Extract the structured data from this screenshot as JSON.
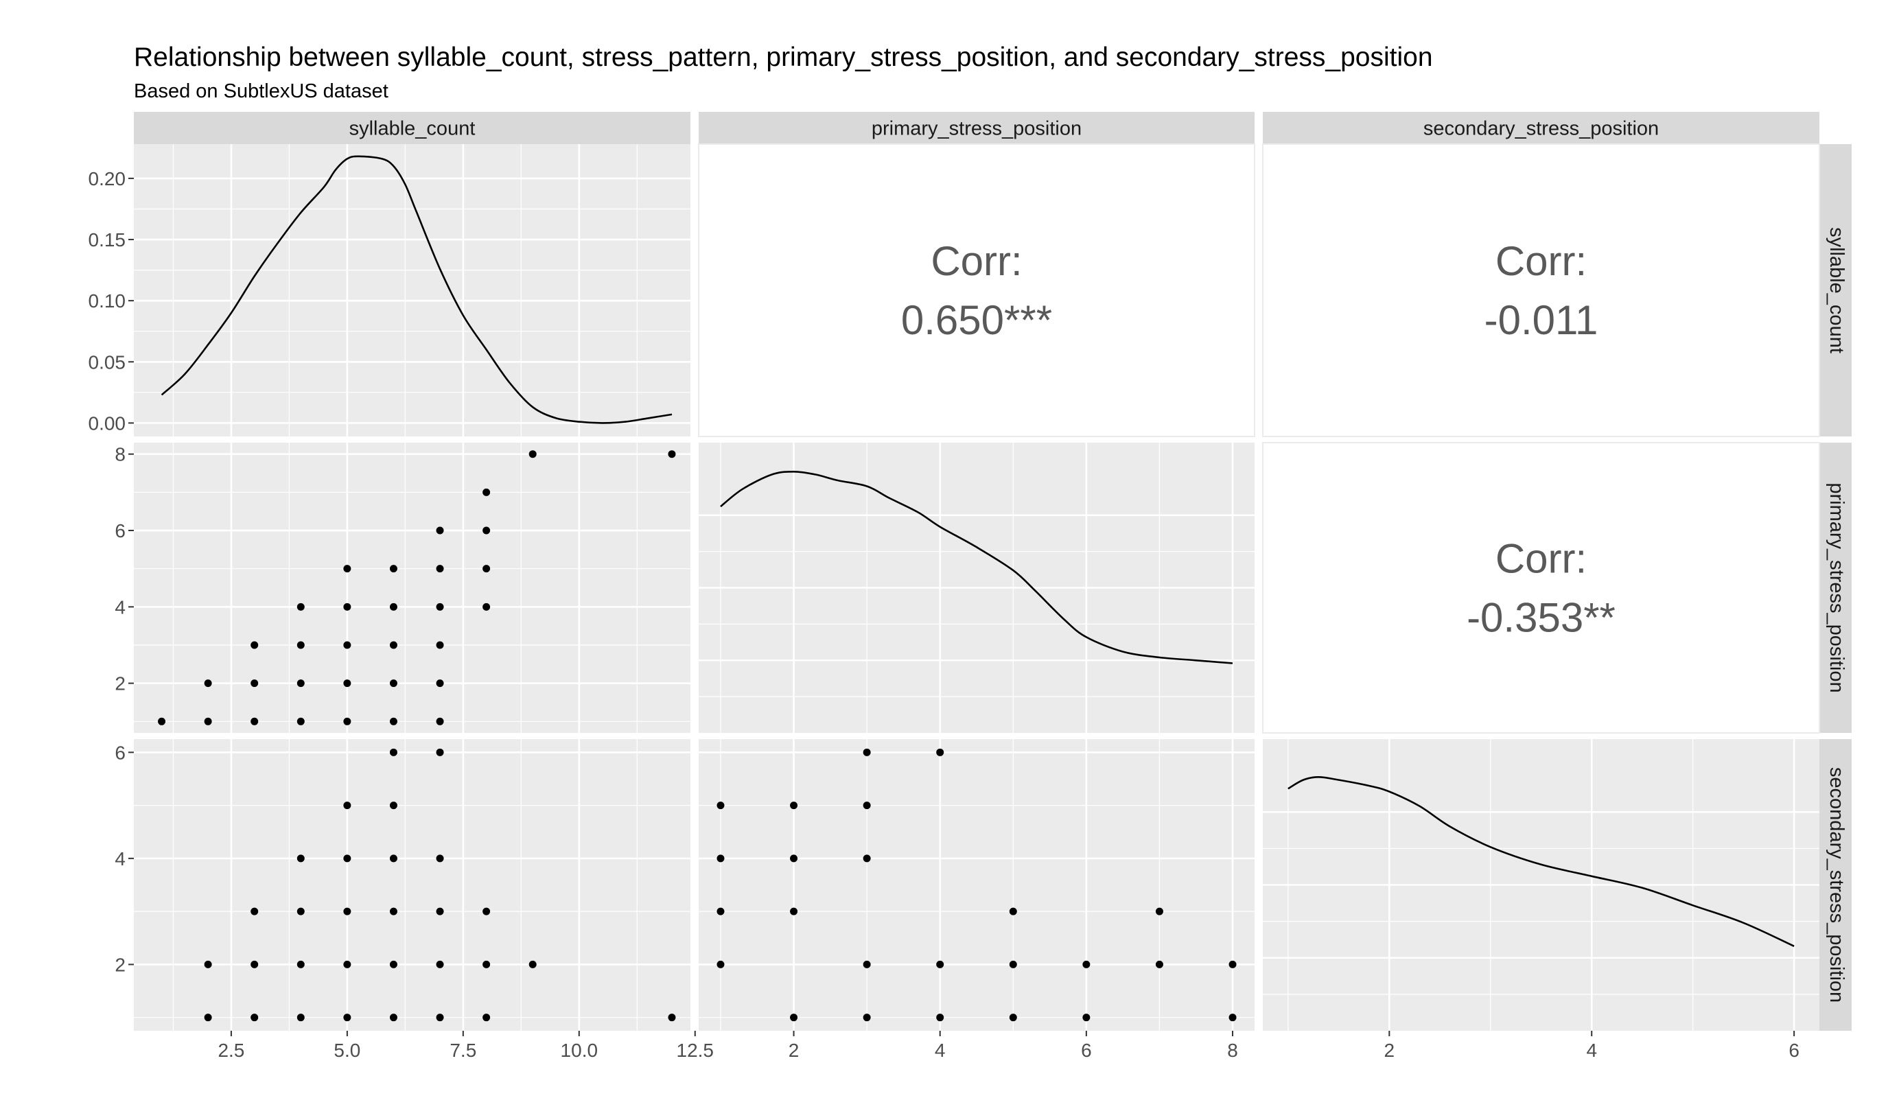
{
  "title": "Relationship between syllable_count, stress_pattern, primary_stress_position, and secondary_stress_position",
  "subtitle": "Based on SubtlexUS dataset",
  "variables": [
    "syllable_count",
    "primary_stress_position",
    "secondary_stress_position"
  ],
  "chart_data": {
    "type": "scatter",
    "title": "Relationship between syllable_count, stress_pattern, primary_stress_position, and secondary_stress_position",
    "subtitle": "Based on SubtlexUS dataset",
    "layout": "pairs-matrix 3x3 (density on diagonal, scatter lower, correlation upper)",
    "strips_top": [
      "syllable_count",
      "primary_stress_position",
      "secondary_stress_position"
    ],
    "strips_right": [
      "syllable_count",
      "primary_stress_position",
      "secondary_stress_position"
    ],
    "axes": {
      "syllable_count": {
        "range": [
          0.4,
          12.4
        ],
        "ticks": [
          2.5,
          5.0,
          7.5,
          10.0,
          12.5
        ],
        "tick_labels": [
          "2.5",
          "5.0",
          "7.5",
          "10.0",
          "12.5"
        ]
      },
      "primary_stress_position": {
        "range": [
          0.7,
          8.3
        ],
        "ticks": [
          2,
          4,
          6,
          8
        ],
        "tick_labels": [
          "2",
          "4",
          "6",
          "8"
        ]
      },
      "secondary_stress_position": {
        "range": [
          0.75,
          6.25
        ],
        "ticks": [
          2,
          4,
          6
        ],
        "tick_labels": [
          "2",
          "4",
          "6"
        ]
      },
      "density_syllable_count": {
        "range": [
          -0.011,
          0.228
        ],
        "ticks": [
          0.0,
          0.05,
          0.1,
          0.15,
          0.2
        ],
        "tick_labels": [
          "0.00",
          "0.05",
          "0.10",
          "0.15",
          "0.20"
        ]
      }
    },
    "densities": {
      "syllable_count": [
        [
          1.0,
          0.023
        ],
        [
          1.5,
          0.04
        ],
        [
          2.0,
          0.064
        ],
        [
          2.5,
          0.09
        ],
        [
          3.0,
          0.12
        ],
        [
          3.5,
          0.147
        ],
        [
          4.0,
          0.172
        ],
        [
          4.5,
          0.193
        ],
        [
          4.75,
          0.207
        ],
        [
          5.0,
          0.216
        ],
        [
          5.25,
          0.218
        ],
        [
          5.75,
          0.216
        ],
        [
          6.0,
          0.21
        ],
        [
          6.25,
          0.195
        ],
        [
          6.5,
          0.172
        ],
        [
          7.0,
          0.126
        ],
        [
          7.5,
          0.088
        ],
        [
          8.0,
          0.06
        ],
        [
          8.5,
          0.033
        ],
        [
          9.0,
          0.013
        ],
        [
          9.5,
          0.004
        ],
        [
          10.0,
          0.001
        ],
        [
          10.5,
          0.0
        ],
        [
          11.0,
          0.001
        ],
        [
          11.5,
          0.004
        ],
        [
          12.0,
          0.007
        ]
      ],
      "primary_stress_position": [
        [
          1.0,
          0.78
        ],
        [
          1.3,
          0.84
        ],
        [
          1.7,
          0.89
        ],
        [
          2.0,
          0.9
        ],
        [
          2.3,
          0.89
        ],
        [
          2.6,
          0.87
        ],
        [
          3.0,
          0.85
        ],
        [
          3.3,
          0.81
        ],
        [
          3.7,
          0.76
        ],
        [
          4.0,
          0.71
        ],
        [
          4.5,
          0.64
        ],
        [
          5.0,
          0.56
        ],
        [
          5.3,
          0.49
        ],
        [
          5.7,
          0.39
        ],
        [
          6.0,
          0.33
        ],
        [
          6.5,
          0.28
        ],
        [
          7.0,
          0.26
        ],
        [
          7.5,
          0.25
        ],
        [
          8.0,
          0.24
        ]
      ],
      "secondary_stress_position": [
        [
          1.0,
          0.83
        ],
        [
          1.15,
          0.86
        ],
        [
          1.3,
          0.87
        ],
        [
          1.5,
          0.86
        ],
        [
          1.8,
          0.84
        ],
        [
          2.0,
          0.82
        ],
        [
          2.3,
          0.77
        ],
        [
          2.6,
          0.7
        ],
        [
          3.0,
          0.63
        ],
        [
          3.5,
          0.57
        ],
        [
          4.0,
          0.53
        ],
        [
          4.5,
          0.49
        ],
        [
          5.0,
          0.43
        ],
        [
          5.5,
          0.37
        ],
        [
          6.0,
          0.29
        ]
      ]
    },
    "correlations": [
      {
        "row": "syllable_count",
        "col": "primary_stress_position",
        "label": "Corr:",
        "value": "0.650***"
      },
      {
        "row": "syllable_count",
        "col": "secondary_stress_position",
        "label": "Corr:",
        "value": "-0.011"
      },
      {
        "row": "primary_stress_position",
        "col": "secondary_stress_position",
        "label": "Corr:",
        "value": "-0.353**"
      }
    ],
    "scatter": {
      "syllable_count_vs_primary_stress_position": [
        [
          1,
          1
        ],
        [
          2,
          1
        ],
        [
          2,
          2
        ],
        [
          3,
          1
        ],
        [
          3,
          2
        ],
        [
          3,
          3
        ],
        [
          4,
          1
        ],
        [
          4,
          2
        ],
        [
          4,
          3
        ],
        [
          4,
          4
        ],
        [
          5,
          1
        ],
        [
          5,
          2
        ],
        [
          5,
          3
        ],
        [
          5,
          4
        ],
        [
          5,
          5
        ],
        [
          6,
          1
        ],
        [
          6,
          2
        ],
        [
          6,
          3
        ],
        [
          6,
          4
        ],
        [
          6,
          5
        ],
        [
          7,
          1
        ],
        [
          7,
          2
        ],
        [
          7,
          3
        ],
        [
          7,
          4
        ],
        [
          7,
          5
        ],
        [
          7,
          6
        ],
        [
          8,
          4
        ],
        [
          8,
          5
        ],
        [
          8,
          6
        ],
        [
          8,
          7
        ],
        [
          9,
          8
        ],
        [
          12,
          8
        ]
      ],
      "syllable_count_vs_secondary_stress_position": [
        [
          2,
          1
        ],
        [
          2,
          2
        ],
        [
          3,
          1
        ],
        [
          3,
          2
        ],
        [
          3,
          3
        ],
        [
          4,
          1
        ],
        [
          4,
          2
        ],
        [
          4,
          3
        ],
        [
          4,
          4
        ],
        [
          5,
          1
        ],
        [
          5,
          2
        ],
        [
          5,
          3
        ],
        [
          5,
          4
        ],
        [
          5,
          5
        ],
        [
          6,
          1
        ],
        [
          6,
          2
        ],
        [
          6,
          3
        ],
        [
          6,
          4
        ],
        [
          6,
          5
        ],
        [
          6,
          6
        ],
        [
          7,
          1
        ],
        [
          7,
          2
        ],
        [
          7,
          3
        ],
        [
          7,
          4
        ],
        [
          7,
          6
        ],
        [
          8,
          1
        ],
        [
          8,
          2
        ],
        [
          8,
          3
        ],
        [
          9,
          2
        ],
        [
          12,
          1
        ]
      ],
      "primary_stress_position_vs_secondary_stress_position": [
        [
          1,
          2
        ],
        [
          1,
          3
        ],
        [
          1,
          4
        ],
        [
          1,
          5
        ],
        [
          2,
          1
        ],
        [
          2,
          3
        ],
        [
          2,
          4
        ],
        [
          2,
          5
        ],
        [
          3,
          1
        ],
        [
          3,
          2
        ],
        [
          3,
          4
        ],
        [
          3,
          5
        ],
        [
          3,
          6
        ],
        [
          4,
          1
        ],
        [
          4,
          2
        ],
        [
          4,
          6
        ],
        [
          5,
          1
        ],
        [
          5,
          2
        ],
        [
          5,
          3
        ],
        [
          6,
          1
        ],
        [
          6,
          2
        ],
        [
          7,
          2
        ],
        [
          7,
          3
        ],
        [
          8,
          1
        ],
        [
          8,
          2
        ]
      ]
    }
  }
}
